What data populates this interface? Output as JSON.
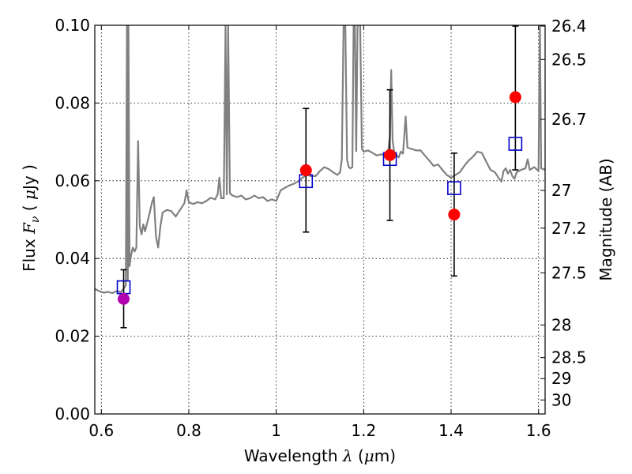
{
  "chart_data": {
    "type": "scatter",
    "xlabel": "Wavelength  λ (μm)",
    "xlabel_prefix": "Wavelength  ",
    "xlabel_lambda": "λ",
    "xlabel_unit_open": " (",
    "xlabel_mu": "μ",
    "xlabel_unit_close": "m)",
    "ylabel": "Flux  Fν  ( μJy )",
    "ylabel_prefix": "Flux  ",
    "ylabel_F": "F",
    "ylabel_nu": "ν",
    "ylabel_open": "  ( ",
    "ylabel_mu": "μ",
    "ylabel_close": "Jy )",
    "y2label": "Magnitude (AB)",
    "xlim": [
      0.585,
      1.615
    ],
    "ylim": [
      0.0,
      0.1
    ],
    "x_ticks": [
      0.6,
      0.8,
      1.0,
      1.2,
      1.4,
      1.6
    ],
    "x_tick_labels": [
      "0.6",
      "0.8",
      "1",
      "1.2",
      "1.4",
      "1.6"
    ],
    "y_ticks": [
      0.0,
      0.02,
      0.04,
      0.06,
      0.08,
      0.1
    ],
    "y_tick_labels": [
      "0.00",
      "0.02",
      "0.04",
      "0.06",
      "0.08",
      "0.10"
    ],
    "y2_ticks": [
      {
        "label": "26.4",
        "flux": 0.0998
      },
      {
        "label": "26.5",
        "flux": 0.0912
      },
      {
        "label": "26.7",
        "flux": 0.0758
      },
      {
        "label": "27",
        "flux": 0.0575
      },
      {
        "label": "27.2",
        "flux": 0.0478
      },
      {
        "label": "27.5",
        "flux": 0.0363
      },
      {
        "label": "28",
        "flux": 0.0229
      },
      {
        "label": "28.5",
        "flux": 0.0145
      },
      {
        "label": "29",
        "flux": 0.0091
      },
      {
        "label": "30",
        "flux": 0.0036
      }
    ],
    "grid": true,
    "colors": {
      "model": "#808080",
      "square": "#0000cc",
      "red": "#ff0000",
      "magenta": "#b000b0",
      "errorbar": "#000000"
    },
    "series": [
      {
        "name": "model spectrum",
        "kind": "line",
        "points": [
          [
            0.585,
            0.0322
          ],
          [
            0.595,
            0.0316
          ],
          [
            0.605,
            0.0312
          ],
          [
            0.615,
            0.0314
          ],
          [
            0.625,
            0.0311
          ],
          [
            0.635,
            0.0316
          ],
          [
            0.645,
            0.0314
          ],
          [
            0.652,
            0.0324
          ],
          [
            0.656,
            0.0331
          ],
          [
            0.6585,
            0.1
          ],
          [
            0.6605,
            0.0345
          ],
          [
            0.662,
            0.1
          ],
          [
            0.6645,
            0.038
          ],
          [
            0.668,
            0.0408
          ],
          [
            0.672,
            0.0428
          ],
          [
            0.676,
            0.0418
          ],
          [
            0.68,
            0.0428
          ],
          [
            0.684,
            0.0702
          ],
          [
            0.688,
            0.0482
          ],
          [
            0.692,
            0.0462
          ],
          [
            0.696,
            0.0488
          ],
          [
            0.7,
            0.047
          ],
          [
            0.705,
            0.0492
          ],
          [
            0.71,
            0.0515
          ],
          [
            0.716,
            0.0545
          ],
          [
            0.72,
            0.0558
          ],
          [
            0.725,
            0.0455
          ],
          [
            0.73,
            0.0428
          ],
          [
            0.735,
            0.0482
          ],
          [
            0.74,
            0.0518
          ],
          [
            0.75,
            0.0525
          ],
          [
            0.76,
            0.0522
          ],
          [
            0.77,
            0.0508
          ],
          [
            0.78,
            0.0525
          ],
          [
            0.79,
            0.0542
          ],
          [
            0.795,
            0.0575
          ],
          [
            0.8,
            0.0545
          ],
          [
            0.81,
            0.054
          ],
          [
            0.82,
            0.0545
          ],
          [
            0.83,
            0.0542
          ],
          [
            0.84,
            0.0548
          ],
          [
            0.85,
            0.0556
          ],
          [
            0.86,
            0.0552
          ],
          [
            0.866,
            0.0565
          ],
          [
            0.87,
            0.0608
          ],
          [
            0.874,
            0.0555
          ],
          [
            0.88,
            0.0555
          ],
          [
            0.884,
            0.1
          ],
          [
            0.887,
            0.0565
          ],
          [
            0.89,
            0.1
          ],
          [
            0.894,
            0.0568
          ],
          [
            0.9,
            0.0562
          ],
          [
            0.91,
            0.0558
          ],
          [
            0.92,
            0.0562
          ],
          [
            0.93,
            0.0552
          ],
          [
            0.94,
            0.0555
          ],
          [
            0.95,
            0.0562
          ],
          [
            0.96,
            0.0555
          ],
          [
            0.97,
            0.0558
          ],
          [
            0.98,
            0.0548
          ],
          [
            0.99,
            0.0552
          ],
          [
            1.0,
            0.0548
          ],
          [
            1.01,
            0.0575
          ],
          [
            1.02,
            0.0582
          ],
          [
            1.03,
            0.0588
          ],
          [
            1.04,
            0.0592
          ],
          [
            1.05,
            0.0598
          ],
          [
            1.06,
            0.0608
          ],
          [
            1.07,
            0.0615
          ],
          [
            1.08,
            0.0612
          ],
          [
            1.09,
            0.0612
          ],
          [
            1.1,
            0.0625
          ],
          [
            1.11,
            0.0635
          ],
          [
            1.12,
            0.063
          ],
          [
            1.13,
            0.0622
          ],
          [
            1.14,
            0.0615
          ],
          [
            1.146,
            0.0622
          ],
          [
            1.15,
            0.0655
          ],
          [
            1.154,
            0.1
          ],
          [
            1.158,
            0.1
          ],
          [
            1.162,
            0.0655
          ],
          [
            1.166,
            0.0635
          ],
          [
            1.17,
            0.0632
          ],
          [
            1.174,
            0.0635
          ],
          [
            1.177,
            0.1
          ],
          [
            1.18,
            0.1
          ],
          [
            1.183,
            0.0676
          ],
          [
            1.186,
            0.1
          ],
          [
            1.192,
            0.1
          ],
          [
            1.196,
            0.0682
          ],
          [
            1.2,
            0.0675
          ],
          [
            1.21,
            0.0678
          ],
          [
            1.22,
            0.0672
          ],
          [
            1.23,
            0.0665
          ],
          [
            1.24,
            0.0668
          ],
          [
            1.25,
            0.0665
          ],
          [
            1.255,
            0.0665
          ],
          [
            1.26,
            0.0715
          ],
          [
            1.263,
            0.0885
          ],
          [
            1.266,
            0.0705
          ],
          [
            1.27,
            0.0672
          ],
          [
            1.28,
            0.066
          ],
          [
            1.285,
            0.0675
          ],
          [
            1.29,
            0.067
          ],
          [
            1.296,
            0.0765
          ],
          [
            1.3,
            0.0685
          ],
          [
            1.31,
            0.0682
          ],
          [
            1.32,
            0.0678
          ],
          [
            1.33,
            0.0678
          ],
          [
            1.34,
            0.0665
          ],
          [
            1.35,
            0.0652
          ],
          [
            1.36,
            0.0638
          ],
          [
            1.37,
            0.0642
          ],
          [
            1.38,
            0.0628
          ],
          [
            1.39,
            0.0615
          ],
          [
            1.4,
            0.0608
          ],
          [
            1.41,
            0.0615
          ],
          [
            1.42,
            0.0622
          ],
          [
            1.43,
            0.0638
          ],
          [
            1.44,
            0.0652
          ],
          [
            1.45,
            0.0662
          ],
          [
            1.46,
            0.0675
          ],
          [
            1.47,
            0.0672
          ],
          [
            1.48,
            0.065
          ],
          [
            1.49,
            0.0628
          ],
          [
            1.5,
            0.0622
          ],
          [
            1.51,
            0.0605
          ],
          [
            1.515,
            0.0598
          ],
          [
            1.52,
            0.0625
          ],
          [
            1.525,
            0.0632
          ],
          [
            1.53,
            0.0618
          ],
          [
            1.535,
            0.0628
          ],
          [
            1.54,
            0.0612
          ],
          [
            1.545,
            0.0605
          ],
          [
            1.55,
            0.0622
          ],
          [
            1.56,
            0.0628
          ],
          [
            1.57,
            0.0632
          ],
          [
            1.575,
            0.0655
          ],
          [
            1.58,
            0.0628
          ],
          [
            1.59,
            0.0635
          ],
          [
            1.6,
            0.0625
          ],
          [
            1.603,
            0.1
          ],
          [
            1.606,
            0.0632
          ],
          [
            1.615,
            0.0628
          ]
        ]
      },
      {
        "name": "model synthetic photometry",
        "kind": "open-square",
        "points": [
          [
            0.651,
            0.0326
          ],
          [
            1.068,
            0.0599
          ],
          [
            1.26,
            0.0656
          ],
          [
            1.407,
            0.0581
          ],
          [
            1.547,
            0.0695
          ]
        ]
      },
      {
        "name": "observed photometry",
        "kind": "filled-circle",
        "points": [
          {
            "x": 0.651,
            "y": 0.0296,
            "err_low": 0.0222,
            "err_high": 0.0371,
            "color": "magenta"
          },
          {
            "x": 1.068,
            "y": 0.0627,
            "err_low": 0.0468,
            "err_high": 0.0786,
            "color": "red"
          },
          {
            "x": 1.26,
            "y": 0.0666,
            "err_low": 0.0498,
            "err_high": 0.0834,
            "color": "red"
          },
          {
            "x": 1.407,
            "y": 0.0513,
            "err_low": 0.0355,
            "err_high": 0.0671,
            "color": "red"
          },
          {
            "x": 1.547,
            "y": 0.0815,
            "err_low": 0.0628,
            "err_high": 0.0998,
            "color": "red"
          }
        ]
      }
    ]
  }
}
